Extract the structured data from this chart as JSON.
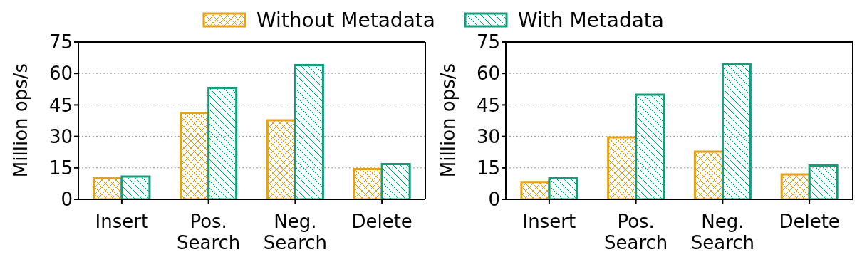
{
  "chart_data": [
    {
      "type": "bar",
      "ylabel": "Million ops/s",
      "categories": [
        "Insert",
        "Pos.\nSearch",
        "Neg.\nSearch",
        "Delete"
      ],
      "series": [
        {
          "name": "Without Metadata",
          "color": "#e3a21a",
          "values": [
            10.1,
            41.2,
            37.7,
            14.4
          ]
        },
        {
          "name": "With Metadata",
          "color": "#129e7a",
          "values": [
            10.9,
            53.1,
            64.0,
            16.8
          ]
        }
      ],
      "ylim": [
        0,
        75
      ],
      "yticks": [
        0,
        15,
        30,
        45,
        60,
        75
      ],
      "grid": "y",
      "legend": "top"
    },
    {
      "type": "bar",
      "ylabel": "Million ops/s",
      "categories": [
        "Insert",
        "Pos.\nSearch",
        "Neg.\nSearch",
        "Delete"
      ],
      "series": [
        {
          "color": "#e3a21a",
          "values": [
            8.2,
            29.5,
            22.7,
            11.9
          ]
        },
        {
          "color": "#129e7a",
          "values": [
            10.0,
            49.9,
            64.4,
            16.1
          ]
        }
      ],
      "ylim": [
        0,
        75
      ],
      "yticks": [
        0,
        15,
        30,
        45,
        60,
        75
      ],
      "grid": "y"
    }
  ]
}
